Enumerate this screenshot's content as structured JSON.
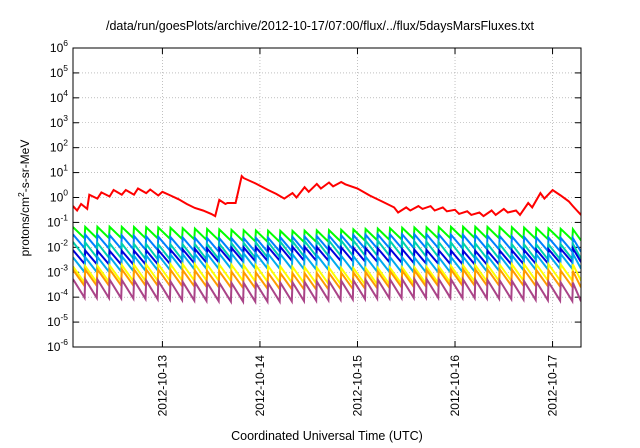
{
  "chart_data": {
    "type": "line",
    "title": "/data/run/goesPlots/archive/2012-10-17/07:00/flux/../flux/5daysMarsFluxes.txt",
    "xlabel": "Coordinated Universal Time (UTC)",
    "ylabel": {
      "pre": "protons/cm",
      "sup": "2",
      "post": "-s-sr-MeV"
    },
    "yscale": "log",
    "ylim": [
      1e-06,
      1000000.0
    ],
    "xlim": [
      "2012-10-12T02:00",
      "2012-10-17T07:00"
    ],
    "x_ticks": [
      "2012-10-13",
      "2012-10-14",
      "2012-10-15",
      "2012-10-16",
      "2012-10-17"
    ],
    "y_ticks": [
      {
        "base": "10",
        "exp": "-6"
      },
      {
        "base": "10",
        "exp": "-5"
      },
      {
        "base": "10",
        "exp": "-4"
      },
      {
        "base": "10",
        "exp": "-3"
      },
      {
        "base": "10",
        "exp": "-2"
      },
      {
        "base": "10",
        "exp": "-1"
      },
      {
        "base": "10",
        "exp": "0"
      },
      {
        "base": "10",
        "exp": "1"
      },
      {
        "base": "10",
        "exp": "2"
      },
      {
        "base": "10",
        "exp": "3"
      },
      {
        "base": "10",
        "exp": "4"
      },
      {
        "base": "10",
        "exp": "5"
      },
      {
        "base": "10",
        "exp": "6"
      }
    ],
    "grid": true,
    "legend": "none",
    "series": [
      {
        "color": "#ff0000",
        "x": [
          "2012-10-12T02:00",
          "2012-10-12T03:00",
          "2012-10-12T04:00",
          "2012-10-12T05:30",
          "2012-10-12T06:00",
          "2012-10-12T08:00",
          "2012-10-12T09:00",
          "2012-10-12T11:00",
          "2012-10-12T12:00",
          "2012-10-12T14:00",
          "2012-10-12T15:00",
          "2012-10-12T17:00",
          "2012-10-12T18:00",
          "2012-10-12T20:00",
          "2012-10-12T21:00",
          "2012-10-12T23:00",
          "2012-10-13T00:00",
          "2012-10-13T02:00",
          "2012-10-13T04:00",
          "2012-10-13T06:00",
          "2012-10-13T08:00",
          "2012-10-13T10:00",
          "2012-10-13T12:00",
          "2012-10-13T13:00",
          "2012-10-13T14:00",
          "2012-10-13T15:30",
          "2012-10-13T16:00",
          "2012-10-13T18:00",
          "2012-10-13T19:30",
          "2012-10-13T20:00",
          "2012-10-13T23:00",
          "2012-10-14T02:00",
          "2012-10-14T04:00",
          "2012-10-14T06:00",
          "2012-10-14T08:00",
          "2012-10-14T09:00",
          "2012-10-14T11:00",
          "2012-10-14T12:00",
          "2012-10-14T14:00",
          "2012-10-14T15:00",
          "2012-10-14T17:00",
          "2012-10-14T18:00",
          "2012-10-14T20:00",
          "2012-10-14T21:00",
          "2012-10-15T00:00",
          "2012-10-15T03:00",
          "2012-10-15T06:00",
          "2012-10-15T09:00",
          "2012-10-15T10:00",
          "2012-10-15T12:00",
          "2012-10-15T13:00",
          "2012-10-15T15:00",
          "2012-10-15T16:00",
          "2012-10-15T18:00",
          "2012-10-15T19:00",
          "2012-10-15T21:00",
          "2012-10-15T22:00",
          "2012-10-16T00:00",
          "2012-10-16T01:00",
          "2012-10-16T03:00",
          "2012-10-16T04:00",
          "2012-10-16T06:00",
          "2012-10-16T07:00",
          "2012-10-16T09:00",
          "2012-10-16T10:00",
          "2012-10-16T12:00",
          "2012-10-16T13:00",
          "2012-10-16T15:00",
          "2012-10-16T16:00",
          "2012-10-16T18:00",
          "2012-10-16T19:00",
          "2012-10-16T21:00",
          "2012-10-16T22:00",
          "2012-10-17T00:00",
          "2012-10-17T02:00",
          "2012-10-17T04:00",
          "2012-10-17T05:00",
          "2012-10-17T06:00",
          "2012-10-17T07:00"
        ],
        "y": [
          0.45,
          0.3,
          0.55,
          0.35,
          1.3,
          0.9,
          1.6,
          1.1,
          2.0,
          1.3,
          2.0,
          1.3,
          2.3,
          1.5,
          2.1,
          1.2,
          1.7,
          1.2,
          0.85,
          0.55,
          0.38,
          0.3,
          0.22,
          0.18,
          0.8,
          0.55,
          0.6,
          0.6,
          7.2,
          6.0,
          3.6,
          2.0,
          1.4,
          0.9,
          1.5,
          1.0,
          2.6,
          1.7,
          3.5,
          2.3,
          4.0,
          2.8,
          4.2,
          3.4,
          2.3,
          1.2,
          0.7,
          0.4,
          0.25,
          0.4,
          0.3,
          0.45,
          0.35,
          0.45,
          0.3,
          0.4,
          0.28,
          0.32,
          0.22,
          0.28,
          0.2,
          0.25,
          0.18,
          0.3,
          0.2,
          0.35,
          0.25,
          0.3,
          0.2,
          0.6,
          0.4,
          1.5,
          0.9,
          2.0,
          1.2,
          0.7,
          0.45,
          0.3,
          0.2
        ]
      },
      {
        "color": "#00ff00",
        "base": 0.02,
        "amp": 0.45
      },
      {
        "color": "#0080ff",
        "base": 0.008,
        "amp": 0.55
      },
      {
        "color": "#00d0b0",
        "base": 0.004,
        "amp": 0.6
      },
      {
        "color": "#0000dd",
        "base": 0.0025,
        "amp": 0.55
      },
      {
        "color": "#00aaee",
        "base": 0.0012,
        "amp": 0.6
      },
      {
        "color": "#ffff00",
        "base": 0.0004,
        "amp": 0.65
      },
      {
        "color": "#ff9a00",
        "base": 0.00025,
        "amp": 0.65
      },
      {
        "color": "#aa4488",
        "base": 8e-05,
        "amp": 0.75
      }
    ]
  }
}
